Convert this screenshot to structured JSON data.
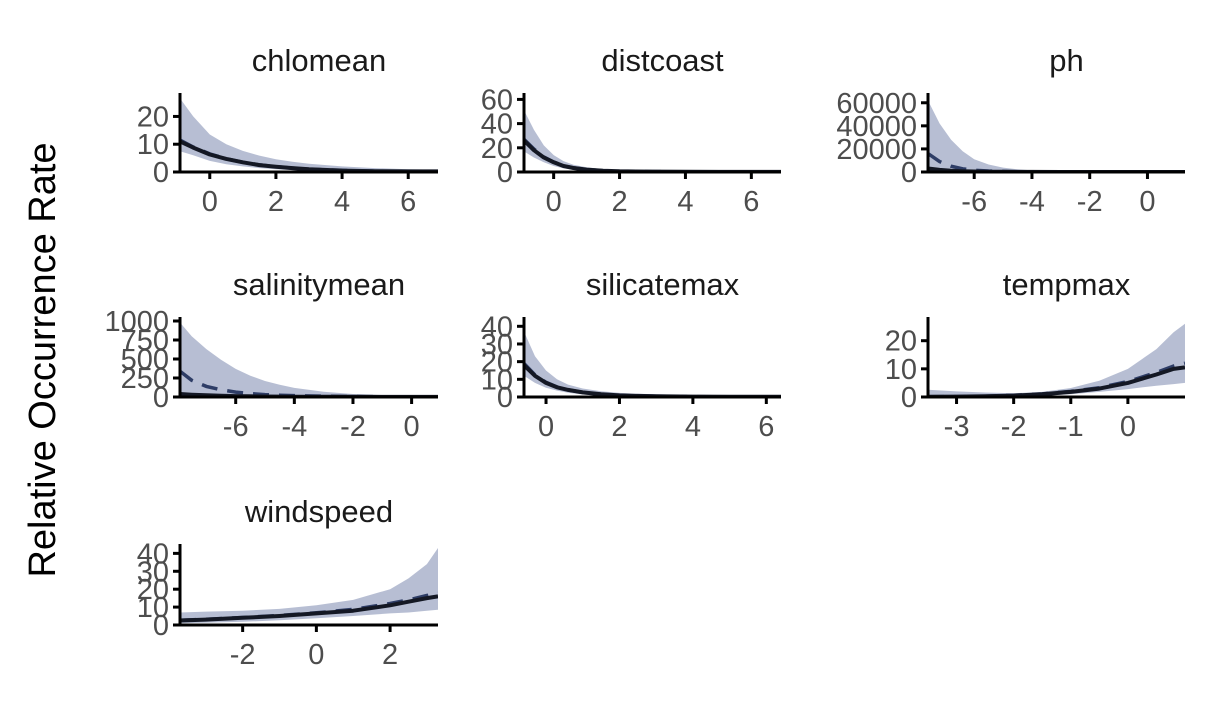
{
  "ylabel": "Relative Occurrence Rate",
  "chart_data": [
    {
      "type": "line",
      "title": "chlomean",
      "xlim": [
        -0.9,
        6.9
      ],
      "ylim": [
        0,
        27
      ],
      "xticks": [
        0,
        2,
        4,
        6
      ],
      "yticks": [
        0,
        10,
        20
      ],
      "x": [
        -0.9,
        -0.5,
        0,
        0.5,
        1,
        1.5,
        2,
        2.5,
        3,
        4,
        5,
        6,
        6.9
      ],
      "median": [
        11.0,
        8.8,
        6.3,
        4.7,
        3.5,
        2.5,
        1.9,
        1.4,
        1.0,
        0.5,
        0.3,
        0.2,
        0.2
      ],
      "mean": [
        11.5,
        9.0,
        6.5,
        4.8,
        3.5,
        2.6,
        1.9,
        1.4,
        1.0,
        0.6,
        0.3,
        0.2,
        0.2
      ],
      "lower": [
        7.5,
        6.0,
        4.0,
        2.8,
        2.0,
        1.4,
        1.0,
        0.7,
        0.5,
        0.2,
        0.1,
        0.05,
        0.03
      ],
      "upper": [
        26.5,
        20.0,
        13.5,
        10.0,
        7.6,
        5.9,
        4.6,
        3.7,
        3.0,
        2.0,
        1.4,
        1.0,
        0.8
      ]
    },
    {
      "type": "line",
      "title": "distcoast",
      "xlim": [
        -0.9,
        6.9
      ],
      "ylim": [
        0,
        62
      ],
      "xticks": [
        0,
        2,
        4,
        6
      ],
      "yticks": [
        0,
        20,
        40,
        60
      ],
      "x": [
        -0.9,
        -0.6,
        -0.3,
        0,
        0.3,
        0.6,
        1,
        1.5,
        2,
        3,
        4,
        5,
        6,
        6.9
      ],
      "median": [
        26,
        18,
        12,
        8,
        5,
        3.3,
        2,
        1.1,
        0.6,
        0.3,
        0.2,
        0.1,
        0.1,
        0.1
      ],
      "mean": [
        27,
        19,
        12.5,
        8.3,
        5.2,
        3.4,
        2.1,
        1.1,
        0.6,
        0.3,
        0.2,
        0.1,
        0.1,
        0.1
      ],
      "lower": [
        17,
        12,
        8,
        5,
        3,
        2,
        1.1,
        0.6,
        0.3,
        0.1,
        0.05,
        0.03,
        0.02,
        0.01
      ],
      "upper": [
        51,
        35,
        22,
        14,
        9,
        6,
        4,
        2.4,
        1.6,
        1.0,
        0.8,
        0.7,
        0.6,
        0.6
      ]
    },
    {
      "type": "line",
      "title": "ph",
      "xlim": [
        -7.6,
        1.3
      ],
      "ylim": [
        0,
        65000
      ],
      "xticks": [
        -6,
        -4,
        -2,
        0
      ],
      "yticks": [
        0,
        20000,
        40000,
        60000
      ],
      "x": [
        -7.6,
        -7.2,
        -6.8,
        -6.4,
        -6,
        -5.5,
        -5,
        -4.5,
        -4,
        -3,
        -2,
        -1,
        0,
        1.3
      ],
      "median": [
        3000,
        1800,
        1100,
        700,
        450,
        280,
        180,
        120,
        80,
        40,
        20,
        10,
        5,
        2
      ],
      "mean": [
        16000,
        9000,
        5000,
        2800,
        1600,
        900,
        500,
        300,
        170,
        60,
        25,
        12,
        6,
        3
      ],
      "lower": [
        500,
        300,
        200,
        120,
        80,
        50,
        30,
        20,
        10,
        5,
        2,
        1,
        0.5,
        0.2
      ],
      "upper": [
        62000,
        42000,
        28000,
        18000,
        11000,
        6500,
        3800,
        2300,
        1400,
        500,
        200,
        90,
        40,
        15
      ]
    },
    {
      "type": "line",
      "title": "salinitymean",
      "xlim": [
        -7.9,
        0.9
      ],
      "ylim": [
        0,
        1000
      ],
      "xticks": [
        -6,
        -4,
        -2,
        0
      ],
      "yticks": [
        0,
        250,
        500,
        750,
        1000
      ],
      "x": [
        -7.9,
        -7.5,
        -7,
        -6.5,
        -6,
        -5.5,
        -5,
        -4.5,
        -4,
        -3,
        -2,
        -1,
        0,
        0.9
      ],
      "median": [
        40,
        30,
        22,
        16,
        12,
        9,
        7,
        5,
        4,
        3,
        2,
        1.5,
        1,
        1
      ],
      "mean": [
        340,
        220,
        140,
        95,
        65,
        45,
        32,
        24,
        18,
        10,
        6,
        4,
        2,
        1
      ],
      "lower": [
        5,
        4,
        3,
        2.5,
        2,
        1.5,
        1.2,
        1,
        0.8,
        0.5,
        0.4,
        0.3,
        0.2,
        0.1
      ],
      "upper": [
        980,
        800,
        630,
        490,
        370,
        280,
        210,
        160,
        120,
        70,
        40,
        25,
        15,
        10
      ]
    },
    {
      "type": "line",
      "title": "silicatemax",
      "xlim": [
        -0.6,
        6.4
      ],
      "ylim": [
        0,
        43
      ],
      "xticks": [
        0,
        2,
        4,
        6
      ],
      "yticks": [
        0,
        10,
        20,
        30,
        40
      ],
      "x": [
        -0.6,
        -0.3,
        0,
        0.3,
        0.6,
        1,
        1.5,
        2,
        2.5,
        3,
        4,
        5,
        6,
        6.4
      ],
      "median": [
        18,
        12,
        8,
        5.5,
        4,
        2.6,
        1.5,
        0.9,
        0.6,
        0.4,
        0.2,
        0.1,
        0.1,
        0.1
      ],
      "mean": [
        19,
        12.5,
        8.3,
        5.7,
        4,
        2.6,
        1.5,
        0.9,
        0.6,
        0.4,
        0.2,
        0.1,
        0.1,
        0.1
      ],
      "lower": [
        12,
        8,
        5.2,
        3.6,
        2.4,
        1.4,
        0.7,
        0.4,
        0.2,
        0.1,
        0.05,
        0.03,
        0.02,
        0.02
      ],
      "upper": [
        37,
        23,
        15,
        10,
        7,
        4.8,
        3.2,
        2.3,
        1.8,
        1.5,
        1.1,
        0.9,
        0.8,
        0.8
      ]
    },
    {
      "type": "line",
      "title": "tempmax",
      "xlim": [
        -3.5,
        1.0
      ],
      "ylim": [
        0,
        27
      ],
      "xticks": [
        -3,
        -2,
        -1,
        0
      ],
      "yticks": [
        0,
        10,
        20
      ],
      "x": [
        -3.5,
        -3,
        -2.5,
        -2,
        -1.5,
        -1,
        -0.5,
        0,
        0.5,
        0.8,
        1.0
      ],
      "median": [
        0.1,
        0.15,
        0.3,
        0.5,
        1,
        1.8,
        3,
        5,
        8,
        10,
        10.5
      ],
      "mean": [
        0.1,
        0.15,
        0.3,
        0.6,
        1.1,
        2,
        3.3,
        5.5,
        8.7,
        11,
        12
      ],
      "lower": [
        0.02,
        0.05,
        0.1,
        0.2,
        0.5,
        1,
        1.8,
        2.8,
        4,
        4.6,
        5
      ],
      "upper": [
        2.6,
        2.0,
        1.6,
        1.3,
        1.8,
        3.2,
        5.8,
        10,
        17,
        23,
        26
      ]
    },
    {
      "type": "line",
      "title": "windspeed",
      "xlim": [
        -3.7,
        3.3
      ],
      "ylim": [
        0,
        43
      ],
      "xticks": [
        -2,
        0,
        2
      ],
      "yticks": [
        0,
        10,
        20,
        30,
        40
      ],
      "x": [
        -3.7,
        -3,
        -2,
        -1,
        0,
        1,
        2,
        2.5,
        3,
        3.3
      ],
      "median": [
        2.5,
        3,
        4,
        5,
        6.5,
        8,
        11,
        13,
        15,
        16
      ],
      "mean": [
        2.6,
        3.2,
        4.2,
        5.3,
        6.8,
        8.7,
        12,
        14,
        16.5,
        18
      ],
      "lower": [
        1,
        1.3,
        1.8,
        2.6,
        3.8,
        5,
        6.5,
        7,
        8,
        8.5
      ],
      "upper": [
        7,
        7.5,
        8,
        9,
        11,
        14,
        20,
        26,
        34,
        43
      ]
    }
  ]
}
